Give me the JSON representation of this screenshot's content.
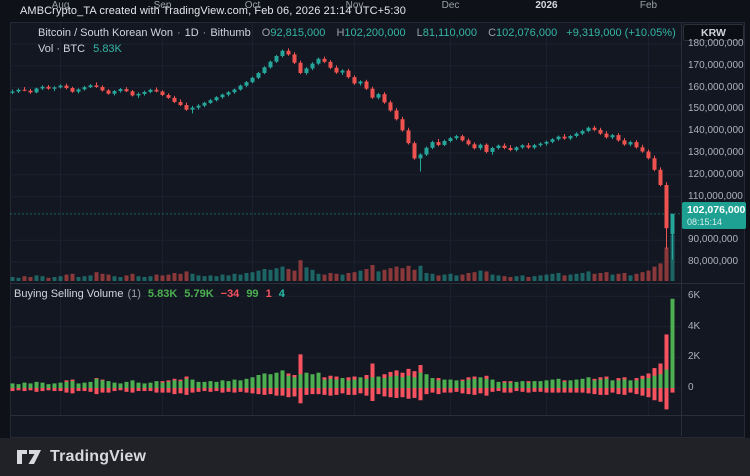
{
  "header": {
    "attribution": "AMBCrypto_TA created with TradingView.com, Feb 06, 2026 21:14 UTC+5:30"
  },
  "toolbar": {
    "currency_label": "KRW"
  },
  "legend": {
    "symbol": "Bitcoin / South Korean Won",
    "sep": "·",
    "timeframe": "1D",
    "exchange": "Bithumb",
    "o_label": "O",
    "o_value": "92,815,000",
    "h_label": "H",
    "h_value": "102,200,000",
    "l_label": "L",
    "l_value": "81,110,000",
    "c_label": "C",
    "c_value": "102,076,000",
    "change": "+9,319,000 (+10.05%)",
    "vol_label": "Vol · BTC",
    "vol_value": "5.83K"
  },
  "indicator_legend": {
    "title": "Buying Selling Volume",
    "param": "(1)",
    "values": [
      {
        "text": "5.83K",
        "color": "#4caf50"
      },
      {
        "text": "5.79K",
        "color": "#4caf50"
      },
      {
        "text": "−34",
        "color": "#f7525f"
      },
      {
        "text": "99",
        "color": "#4caf50"
      },
      {
        "text": "1",
        "color": "#f7525f"
      },
      {
        "text": "4",
        "color": "#26c0ab"
      }
    ]
  },
  "price_badge": {
    "price": "102,076,000",
    "countdown": "08:15:14"
  },
  "footer": {
    "brand": "TradingView"
  },
  "colors": {
    "bg": "#0e1117",
    "chart_bg": "#131722",
    "grid": "#1b2030",
    "border": "#2a2e39",
    "widget_border": "#242935",
    "up": "#26a69a",
    "down": "#ef5350",
    "vol_up": "rgba(38,166,154,0.55)",
    "vol_down": "rgba(239,83,80,0.55)",
    "buy": "#4caf50",
    "sell": "#f7525f",
    "text": "#d1d4dc",
    "muted": "#9aa0aa",
    "axis_text": "#aeb1bb",
    "teal": "#35b5a5",
    "badge_bg": "#1ea193",
    "footer_bg": "#202227",
    "letter": "#9da1ac",
    "last_price_line": "rgba(38,166,154,0.5)"
  },
  "chart_data": {
    "type": "candlestick",
    "title": "Bitcoin / South Korean Won · 1D · Bithumb",
    "price_axis_unit": "KRW",
    "price_ticks": [
      {
        "value_m": 180,
        "label": "180,000,000"
      },
      {
        "value_m": 170,
        "label": "170,000,000"
      },
      {
        "value_m": 160,
        "label": "160,000,000"
      },
      {
        "value_m": 150,
        "label": "150,000,000"
      },
      {
        "value_m": 140,
        "label": "140,000,000"
      },
      {
        "value_m": 130,
        "label": "130,000,000"
      },
      {
        "value_m": 120,
        "label": "120,000,000"
      },
      {
        "value_m": 110,
        "label": "110,000,000"
      },
      {
        "value_m": 90,
        "label": "90,000,000"
      },
      {
        "value_m": 80,
        "label": "80,000,000"
      }
    ],
    "volume_ticks": [
      {
        "value_k": 6,
        "label": "6K"
      },
      {
        "value_k": 4,
        "label": "4K"
      },
      {
        "value_k": 2,
        "label": "2K"
      },
      {
        "value_k": 0,
        "label": "0"
      }
    ],
    "months": [
      {
        "label": "Aug",
        "slot": 8
      },
      {
        "label": "Sep",
        "slot": 25
      },
      {
        "label": "Oct",
        "slot": 40
      },
      {
        "label": "Nov",
        "slot": 57
      },
      {
        "label": "Dec",
        "slot": 73
      },
      {
        "label": "2026",
        "slot": 89,
        "bold": true
      },
      {
        "label": "Feb",
        "slot": 106
      }
    ],
    "last": {
      "open_m": 92.815,
      "high_m": 102.2,
      "low_m": 81.11,
      "close_m": 102.076,
      "change": "+9,319,000",
      "change_pct": "+10.05%",
      "volume_k": 5.83
    },
    "candles_ohlc_millions": [
      [
        157.6,
        159.1,
        157.0,
        158.2
      ],
      [
        158.2,
        159.6,
        157.5,
        159.0
      ],
      [
        159.0,
        160.2,
        158.3,
        158.6
      ],
      [
        158.6,
        159.4,
        157.2,
        157.8
      ],
      [
        157.8,
        160.0,
        157.4,
        159.6
      ],
      [
        159.6,
        161.0,
        158.9,
        160.4
      ],
      [
        160.4,
        161.2,
        159.0,
        159.5
      ],
      [
        159.5,
        160.6,
        158.4,
        160.1
      ],
      [
        160.1,
        161.5,
        159.6,
        160.9
      ],
      [
        160.9,
        161.8,
        159.2,
        159.8
      ],
      [
        159.8,
        160.4,
        157.6,
        158.1
      ],
      [
        158.1,
        159.7,
        157.3,
        159.2
      ],
      [
        159.2,
        160.8,
        158.6,
        160.2
      ],
      [
        160.2,
        161.6,
        159.8,
        161.0
      ],
      [
        161.0,
        162.4,
        159.9,
        160.3
      ],
      [
        160.3,
        161.0,
        158.2,
        158.7
      ],
      [
        158.7,
        159.3,
        156.8,
        157.2
      ],
      [
        157.2,
        158.9,
        156.4,
        158.4
      ],
      [
        158.4,
        159.8,
        157.7,
        159.3
      ],
      [
        159.3,
        160.2,
        157.9,
        158.3
      ],
      [
        158.3,
        158.9,
        155.9,
        156.4
      ],
      [
        156.4,
        157.8,
        155.2,
        157.1
      ],
      [
        157.1,
        158.6,
        156.3,
        158.0
      ],
      [
        158.0,
        159.5,
        157.4,
        159.0
      ],
      [
        159.0,
        160.1,
        157.8,
        158.2
      ],
      [
        158.2,
        158.8,
        156.1,
        156.6
      ],
      [
        156.6,
        157.4,
        154.8,
        155.3
      ],
      [
        155.3,
        156.2,
        152.9,
        153.4
      ],
      [
        153.4,
        154.6,
        151.5,
        152.0
      ],
      [
        152.0,
        153.1,
        149.3,
        149.9
      ],
      [
        149.9,
        151.6,
        148.2,
        150.8
      ],
      [
        150.8,
        152.4,
        149.9,
        151.7
      ],
      [
        151.7,
        153.5,
        151.0,
        153.0
      ],
      [
        153.0,
        154.8,
        152.4,
        154.2
      ],
      [
        154.2,
        156.1,
        153.6,
        155.6
      ],
      [
        155.6,
        157.3,
        154.9,
        156.8
      ],
      [
        156.8,
        158.4,
        156.0,
        157.9
      ],
      [
        157.9,
        159.6,
        157.2,
        159.1
      ],
      [
        159.1,
        161.4,
        158.6,
        160.9
      ],
      [
        160.9,
        163.0,
        160.2,
        162.5
      ],
      [
        162.5,
        165.0,
        162.0,
        164.5
      ],
      [
        164.5,
        167.2,
        163.9,
        166.7
      ],
      [
        166.7,
        169.8,
        166.1,
        169.3
      ],
      [
        169.3,
        172.4,
        168.7,
        171.9
      ],
      [
        171.9,
        175.0,
        171.3,
        174.5
      ],
      [
        174.5,
        177.5,
        173.8,
        176.9
      ],
      [
        176.9,
        178.0,
        174.6,
        175.2
      ],
      [
        175.2,
        176.2,
        170.8,
        171.4
      ],
      [
        171.4,
        172.4,
        166.1,
        166.7
      ],
      [
        166.7,
        169.4,
        165.9,
        168.8
      ],
      [
        168.8,
        171.6,
        168.0,
        171.0
      ],
      [
        171.0,
        173.8,
        170.4,
        173.2
      ],
      [
        173.2,
        174.2,
        171.2,
        171.8
      ],
      [
        171.8,
        172.6,
        168.5,
        169.1
      ],
      [
        169.1,
        170.2,
        166.3,
        166.9
      ],
      [
        166.9,
        168.4,
        165.8,
        167.8
      ],
      [
        167.8,
        168.6,
        164.2,
        164.8
      ],
      [
        164.8,
        165.6,
        161.3,
        161.9
      ],
      [
        161.9,
        163.4,
        160.9,
        162.8
      ],
      [
        162.8,
        163.6,
        158.9,
        159.5
      ],
      [
        159.5,
        160.4,
        154.8,
        155.4
      ],
      [
        155.4,
        157.6,
        154.6,
        157.0
      ],
      [
        157.0,
        157.9,
        152.6,
        153.2
      ],
      [
        153.2,
        154.1,
        148.9,
        149.5
      ],
      [
        149.5,
        150.6,
        144.9,
        145.5
      ],
      [
        145.5,
        146.6,
        139.8,
        140.4
      ],
      [
        140.4,
        141.6,
        133.9,
        134.5
      ],
      [
        134.5,
        135.4,
        126.9,
        127.5
      ],
      [
        127.5,
        129.9,
        121.5,
        129.3
      ],
      [
        129.3,
        133.0,
        128.6,
        132.4
      ],
      [
        132.4,
        135.6,
        131.8,
        135.0
      ],
      [
        135.0,
        136.4,
        133.1,
        133.7
      ],
      [
        133.7,
        136.1,
        133.2,
        135.5
      ],
      [
        135.5,
        137.4,
        134.8,
        136.8
      ],
      [
        136.8,
        138.3,
        136.0,
        137.7
      ],
      [
        137.7,
        138.4,
        135.2,
        135.8
      ],
      [
        135.8,
        136.7,
        133.4,
        134.0
      ],
      [
        134.0,
        134.9,
        131.6,
        132.2
      ],
      [
        132.2,
        134.3,
        131.3,
        133.8
      ],
      [
        133.8,
        134.4,
        129.9,
        130.5
      ],
      [
        130.5,
        132.8,
        129.2,
        132.3
      ],
      [
        132.3,
        133.9,
        131.6,
        133.4
      ],
      [
        133.4,
        134.4,
        131.7,
        132.3
      ],
      [
        132.3,
        133.6,
        130.8,
        131.4
      ],
      [
        131.4,
        133.1,
        130.7,
        132.6
      ],
      [
        132.6,
        134.0,
        131.9,
        133.5
      ],
      [
        133.5,
        134.6,
        131.9,
        132.5
      ],
      [
        132.5,
        134.1,
        131.7,
        133.6
      ],
      [
        133.6,
        134.9,
        132.8,
        134.3
      ],
      [
        134.3,
        135.7,
        133.4,
        135.1
      ],
      [
        135.1,
        136.8,
        134.5,
        136.3
      ],
      [
        136.3,
        138.0,
        135.6,
        137.5
      ],
      [
        137.5,
        138.7,
        136.1,
        136.7
      ],
      [
        136.7,
        138.3,
        135.9,
        137.8
      ],
      [
        137.8,
        139.5,
        137.1,
        138.9
      ],
      [
        138.9,
        140.7,
        138.2,
        140.1
      ],
      [
        140.1,
        142.1,
        139.5,
        141.6
      ],
      [
        141.6,
        142.5,
        140.0,
        140.6
      ],
      [
        140.6,
        141.6,
        138.3,
        138.9
      ],
      [
        138.9,
        140.0,
        136.6,
        137.2
      ],
      [
        137.2,
        138.8,
        136.4,
        138.2
      ],
      [
        138.2,
        139.1,
        135.2,
        135.8
      ],
      [
        135.8,
        136.9,
        133.3,
        133.9
      ],
      [
        133.9,
        135.6,
        133.1,
        135.0
      ],
      [
        135.0,
        135.9,
        132.0,
        132.6
      ],
      [
        132.6,
        133.8,
        130.1,
        130.7
      ],
      [
        130.7,
        131.6,
        127.0,
        127.6
      ],
      [
        127.6,
        128.8,
        121.7,
        122.3
      ],
      [
        122.3,
        123.4,
        114.7,
        115.3
      ],
      [
        115.3,
        116.6,
        86.0,
        95.5
      ],
      [
        92.8,
        102.2,
        81.1,
        102.1
      ]
    ],
    "volume_k": [
      0.5,
      0.4,
      0.6,
      0.5,
      0.7,
      0.6,
      0.4,
      0.5,
      0.6,
      0.8,
      0.9,
      0.5,
      0.6,
      0.7,
      1.1,
      0.9,
      0.8,
      0.6,
      0.5,
      0.7,
      0.9,
      0.6,
      0.5,
      0.6,
      0.8,
      0.7,
      0.8,
      1.0,
      0.9,
      1.2,
      0.9,
      0.7,
      0.6,
      0.7,
      0.6,
      0.8,
      0.7,
      0.9,
      0.8,
      1.0,
      1.1,
      1.3,
      1.5,
      1.4,
      1.6,
      1.8,
      1.5,
      1.3,
      2.6,
      1.7,
      1.4,
      0.9,
      0.8,
      1.0,
      0.9,
      0.8,
      1.0,
      1.1,
      1.3,
      1.5,
      2.0,
      1.2,
      1.4,
      1.6,
      1.8,
      1.6,
      1.9,
      1.4,
      1.9,
      1.0,
      0.9,
      0.7,
      0.8,
      0.9,
      0.7,
      0.8,
      1.0,
      1.1,
      1.3,
      1.2,
      0.8,
      0.7,
      0.6,
      0.5,
      0.6,
      0.7,
      0.5,
      0.6,
      0.7,
      0.8,
      0.9,
      1.0,
      0.7,
      0.8,
      0.9,
      1.0,
      1.2,
      0.9,
      1.0,
      1.1,
      0.8,
      0.9,
      1.0,
      0.7,
      0.9,
      1.1,
      1.3,
      1.8,
      2.2,
      4.2,
      5.8
    ],
    "buy_sell_k": [
      [
        0.3,
        0.25,
        0.2
      ],
      [
        0.25,
        0.2,
        0.15
      ],
      [
        0.35,
        0.3,
        0.2
      ],
      [
        0.3,
        0.25,
        0.15
      ],
      [
        0.4,
        0.35,
        0.25
      ],
      [
        0.35,
        0.3,
        0.2
      ],
      [
        0.25,
        0.2,
        0.15
      ],
      [
        0.3,
        0.25,
        0.2
      ],
      [
        0.35,
        0.3,
        0.2
      ],
      [
        0.4,
        0.5,
        0.3
      ],
      [
        0.45,
        0.55,
        0.35
      ],
      [
        0.3,
        0.25,
        0.2
      ],
      [
        0.35,
        0.3,
        0.2
      ],
      [
        0.4,
        0.35,
        0.25
      ],
      [
        0.6,
        0.65,
        0.4
      ],
      [
        0.5,
        0.55,
        0.3
      ],
      [
        0.45,
        0.4,
        0.3
      ],
      [
        0.35,
        0.3,
        0.2
      ],
      [
        0.3,
        0.25,
        0.15
      ],
      [
        0.4,
        0.35,
        0.25
      ],
      [
        0.5,
        0.45,
        0.3
      ],
      [
        0.35,
        0.3,
        0.2
      ],
      [
        0.3,
        0.25,
        0.2
      ],
      [
        0.35,
        0.3,
        0.2
      ],
      [
        0.45,
        0.4,
        0.3
      ],
      [
        0.35,
        0.45,
        0.3
      ],
      [
        0.4,
        0.5,
        0.3
      ],
      [
        0.5,
        0.6,
        0.4
      ],
      [
        0.45,
        0.55,
        0.35
      ],
      [
        0.6,
        0.75,
        0.45
      ],
      [
        0.55,
        0.4,
        0.3
      ],
      [
        0.4,
        0.35,
        0.25
      ],
      [
        0.4,
        0.3,
        0.2
      ],
      [
        0.45,
        0.35,
        0.25
      ],
      [
        0.4,
        0.3,
        0.2
      ],
      [
        0.5,
        0.4,
        0.3
      ],
      [
        0.45,
        0.35,
        0.25
      ],
      [
        0.55,
        0.45,
        0.3
      ],
      [
        0.5,
        0.4,
        0.25
      ],
      [
        0.6,
        0.45,
        0.3
      ],
      [
        0.7,
        0.5,
        0.35
      ],
      [
        0.85,
        0.6,
        0.4
      ],
      [
        0.95,
        0.7,
        0.45
      ],
      [
        0.9,
        0.65,
        0.4
      ],
      [
        1.0,
        0.75,
        0.5
      ],
      [
        1.15,
        0.8,
        0.5
      ],
      [
        0.8,
        0.95,
        0.6
      ],
      [
        0.7,
        0.85,
        0.55
      ],
      [
        0.9,
        2.2,
        1.0
      ],
      [
        1.0,
        0.7,
        0.45
      ],
      [
        0.9,
        0.6,
        0.4
      ],
      [
        1.0,
        0.65,
        0.4
      ],
      [
        0.55,
        0.7,
        0.45
      ],
      [
        0.6,
        0.8,
        0.5
      ],
      [
        0.55,
        0.75,
        0.45
      ],
      [
        0.65,
        0.5,
        0.35
      ],
      [
        0.5,
        0.7,
        0.45
      ],
      [
        0.55,
        0.75,
        0.45
      ],
      [
        0.7,
        0.55,
        0.35
      ],
      [
        0.6,
        0.85,
        0.5
      ],
      [
        0.7,
        1.6,
        0.85
      ],
      [
        0.75,
        0.6,
        0.4
      ],
      [
        0.65,
        0.9,
        0.55
      ],
      [
        0.75,
        1.05,
        0.6
      ],
      [
        0.8,
        1.15,
        0.65
      ],
      [
        0.7,
        1.0,
        0.6
      ],
      [
        0.8,
        1.25,
        0.7
      ],
      [
        0.7,
        1.1,
        0.65
      ],
      [
        1.0,
        1.5,
        0.8
      ],
      [
        0.9,
        0.65,
        0.4
      ],
      [
        0.65,
        0.45,
        0.3
      ],
      [
        0.5,
        0.65,
        0.4
      ],
      [
        0.55,
        0.4,
        0.3
      ],
      [
        0.55,
        0.4,
        0.3
      ],
      [
        0.5,
        0.35,
        0.25
      ],
      [
        0.45,
        0.55,
        0.35
      ],
      [
        0.55,
        0.7,
        0.4
      ],
      [
        0.6,
        0.75,
        0.45
      ],
      [
        0.7,
        0.5,
        0.35
      ],
      [
        0.6,
        0.8,
        0.5
      ],
      [
        0.55,
        0.4,
        0.25
      ],
      [
        0.4,
        0.3,
        0.2
      ],
      [
        0.35,
        0.45,
        0.3
      ],
      [
        0.35,
        0.45,
        0.3
      ],
      [
        0.4,
        0.3,
        0.2
      ],
      [
        0.45,
        0.35,
        0.25
      ],
      [
        0.35,
        0.45,
        0.3
      ],
      [
        0.45,
        0.35,
        0.25
      ],
      [
        0.45,
        0.35,
        0.25
      ],
      [
        0.5,
        0.4,
        0.3
      ],
      [
        0.55,
        0.45,
        0.3
      ],
      [
        0.6,
        0.45,
        0.3
      ],
      [
        0.4,
        0.5,
        0.3
      ],
      [
        0.5,
        0.4,
        0.3
      ],
      [
        0.55,
        0.45,
        0.3
      ],
      [
        0.6,
        0.45,
        0.3
      ],
      [
        0.7,
        0.55,
        0.35
      ],
      [
        0.5,
        0.6,
        0.4
      ],
      [
        0.55,
        0.7,
        0.45
      ],
      [
        0.6,
        0.75,
        0.45
      ],
      [
        0.5,
        0.4,
        0.3
      ],
      [
        0.5,
        0.65,
        0.4
      ],
      [
        0.55,
        0.7,
        0.45
      ],
      [
        0.5,
        0.4,
        0.3
      ],
      [
        0.5,
        0.65,
        0.4
      ],
      [
        0.6,
        0.8,
        0.5
      ],
      [
        0.65,
        0.95,
        0.6
      ],
      [
        0.8,
        1.3,
        0.8
      ],
      [
        0.9,
        1.6,
        0.9
      ],
      [
        1.2,
        3.5,
        1.4
      ],
      [
        5.83,
        0.4,
        0.3
      ]
    ]
  }
}
